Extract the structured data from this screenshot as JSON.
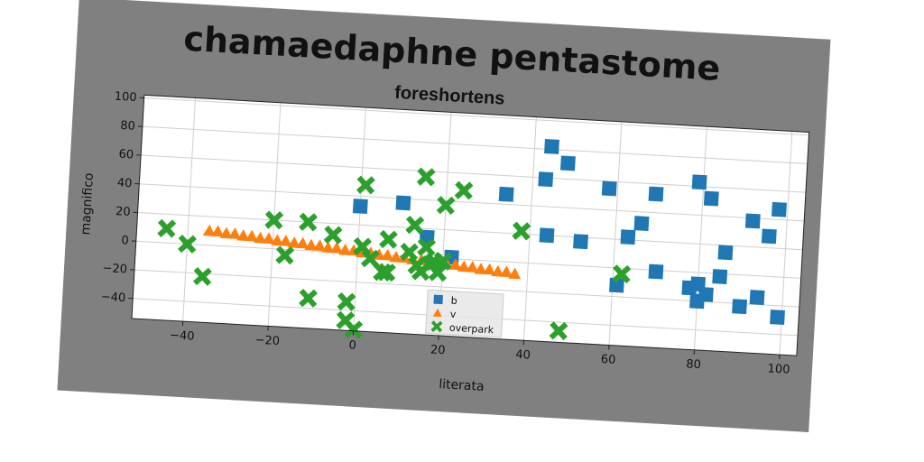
{
  "chart_data": {
    "type": "scatter",
    "title": "chamaedaphne pentastome",
    "subtitle": "foreshortens",
    "xlabel": "literata",
    "ylabel": "magnifico",
    "xlim": [
      -52,
      104
    ],
    "ylim": [
      -54,
      102
    ],
    "xticks": [
      -40,
      -20,
      0,
      20,
      40,
      60,
      80,
      100
    ],
    "yticks": [
      -40,
      -20,
      0,
      20,
      40,
      60,
      80,
      100
    ],
    "tick_labels_x": [
      "−40",
      "−20",
      "0",
      "20",
      "40",
      "60",
      "80",
      "100"
    ],
    "tick_labels_y": [
      "−40",
      "−20",
      "0",
      "20",
      "40",
      "60",
      "80",
      "100"
    ],
    "grid": true,
    "legend_position": "lower-center",
    "series": [
      {
        "name": "b",
        "marker": "square",
        "color": "#1f77b4",
        "points": [
          [
            0,
            33
          ],
          [
            10,
            37
          ],
          [
            16,
            14
          ],
          [
            22,
            1
          ],
          [
            34,
            47
          ],
          [
            43,
            59
          ],
          [
            44,
            82
          ],
          [
            44,
            20
          ],
          [
            48,
            71
          ],
          [
            52,
            17
          ],
          [
            58,
            55
          ],
          [
            61,
            -12
          ],
          [
            63,
            22
          ],
          [
            66,
            32
          ],
          [
            69,
            53
          ],
          [
            70,
            -1
          ],
          [
            78,
            -11
          ],
          [
            79,
            63
          ],
          [
            80,
            -8
          ],
          [
            80,
            -20
          ],
          [
            82,
            52
          ],
          [
            82,
            -15
          ],
          [
            85,
            -2
          ],
          [
            86,
            15
          ],
          [
            90,
            -22
          ],
          [
            92,
            38
          ],
          [
            94,
            -15
          ],
          [
            96,
            28
          ],
          [
            98,
            47
          ],
          [
            99,
            -28
          ]
        ]
      },
      {
        "name": "v",
        "marker": "triangle",
        "color": "#ff7f0e",
        "points": [
          [
            -35,
            10
          ],
          [
            -33,
            10
          ],
          [
            -31,
            9
          ],
          [
            -29,
            9
          ],
          [
            -27,
            8
          ],
          [
            -25,
            8
          ],
          [
            -23,
            7
          ],
          [
            -21,
            7
          ],
          [
            -19,
            6
          ],
          [
            -17,
            6
          ],
          [
            -15,
            5
          ],
          [
            -13,
            5
          ],
          [
            -11,
            4
          ],
          [
            -9,
            4
          ],
          [
            -7,
            3
          ],
          [
            -5,
            3
          ],
          [
            -3,
            2
          ],
          [
            -1,
            2
          ],
          [
            1,
            1
          ],
          [
            3,
            1
          ],
          [
            5,
            0
          ],
          [
            7,
            0
          ],
          [
            9,
            -1
          ],
          [
            11,
            -1
          ],
          [
            13,
            -2
          ],
          [
            15,
            -2
          ],
          [
            17,
            -3
          ],
          [
            19,
            -3
          ],
          [
            21,
            -4
          ],
          [
            23,
            -4
          ],
          [
            25,
            -5
          ],
          [
            27,
            -5
          ],
          [
            29,
            -6
          ],
          [
            31,
            -6
          ],
          [
            33,
            -7
          ],
          [
            35,
            -7
          ],
          [
            37,
            -8
          ]
        ]
      },
      {
        "name": "overpark",
        "marker": "x",
        "color": "#2ca02c",
        "points": [
          [
            -45,
            10
          ],
          [
            -40,
            0
          ],
          [
            -36,
            -22
          ],
          [
            -20,
            20
          ],
          [
            -17,
            -4
          ],
          [
            -12,
            20
          ],
          [
            -11,
            -33
          ],
          [
            -6,
            12
          ],
          [
            -2,
            -34
          ],
          [
            -2,
            -47
          ],
          [
            0,
            -53
          ],
          [
            1,
            48
          ],
          [
            1,
            5
          ],
          [
            3,
            -3
          ],
          [
            6,
            -12
          ],
          [
            7,
            11
          ],
          [
            7,
            -12
          ],
          [
            12,
            3
          ],
          [
            13,
            22
          ],
          [
            14,
            -6
          ],
          [
            15,
            56
          ],
          [
            15,
            -10
          ],
          [
            16,
            7
          ],
          [
            17,
            -5
          ],
          [
            18,
            -3
          ],
          [
            19,
            -10
          ],
          [
            20,
            -2
          ],
          [
            20,
            37
          ],
          [
            24,
            48
          ],
          [
            38,
            22
          ],
          [
            48,
            -46
          ],
          [
            62,
            -4
          ]
        ]
      }
    ]
  }
}
